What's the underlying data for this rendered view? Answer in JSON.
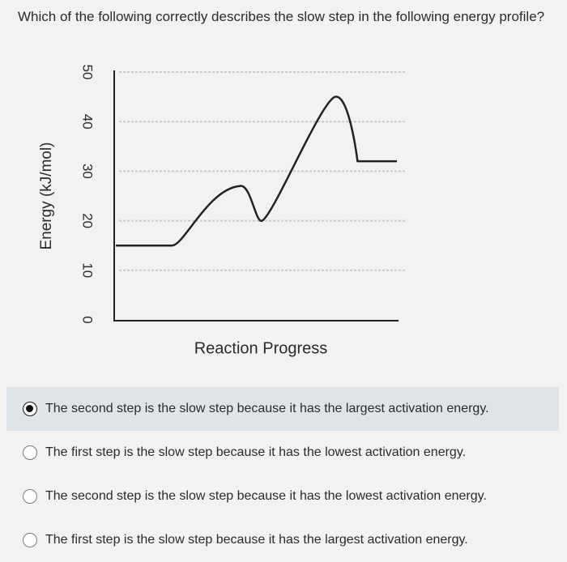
{
  "question": {
    "text": "Which of the following correctly describes the slow step in the following energy profile?"
  },
  "chart_data": {
    "type": "line",
    "title": "",
    "xlabel": "Reaction Progress",
    "ylabel": "Energy (kJ/mol)",
    "ylim": [
      0,
      50
    ],
    "yticks": [
      50,
      40,
      30,
      20,
      10,
      0
    ],
    "grid": "horizontal dashed",
    "series": [
      {
        "x": [
          0,
          0.2,
          0.27,
          0.44,
          0.52,
          0.78,
          0.86,
          1.0
        ],
        "y": [
          15,
          15,
          20,
          27,
          20,
          45,
          32,
          32
        ]
      }
    ]
  },
  "options": [
    {
      "label": "The second step is the slow step because it has the largest activation energy.",
      "selected": true
    },
    {
      "label": "The first step is the slow step because it has the lowest activation energy.",
      "selected": false
    },
    {
      "label": "The second step is the slow step because it has the lowest activation energy.",
      "selected": false
    },
    {
      "label": "The first step is the slow step because it has the largest activation energy.",
      "selected": false
    }
  ]
}
